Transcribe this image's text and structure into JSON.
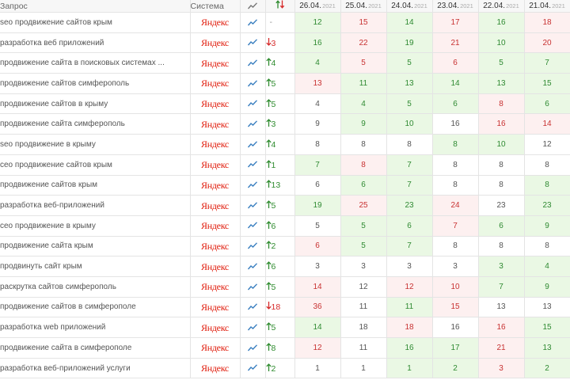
{
  "header": {
    "query_label": "Запрос",
    "system_label": "Система",
    "chart_icon": "line-chart-icon",
    "dynamics_icon": "up-down-arrows-icon",
    "dates": [
      {
        "day": "26.04.",
        "year": "2021"
      },
      {
        "day": "25.04.",
        "year": "2021"
      },
      {
        "day": "24.04.",
        "year": "2021"
      },
      {
        "day": "23.04.",
        "year": "2021"
      },
      {
        "day": "22.04.",
        "year": "2021"
      },
      {
        "day": "21.04.",
        "year": "2021"
      }
    ]
  },
  "colors": {
    "good_bg": "#eaf8e4",
    "bad_bg": "#fdf0f0",
    "up": "#2e8b2e",
    "down": "#d62a2a",
    "yandex": "#e01a0a"
  },
  "rows": [
    {
      "query": "seo продвижение сайтов крым",
      "system": "Яндекс",
      "dyn_dir": "none",
      "dyn": "-",
      "positions": [
        {
          "v": "12",
          "s": "good"
        },
        {
          "v": "15",
          "s": "bad"
        },
        {
          "v": "14",
          "s": "good"
        },
        {
          "v": "17",
          "s": "bad"
        },
        {
          "v": "16",
          "s": "good"
        },
        {
          "v": "18",
          "s": "bad"
        }
      ]
    },
    {
      "query": "разработка веб приложений",
      "system": "Яндекс",
      "dyn_dir": "down",
      "dyn": "3",
      "positions": [
        {
          "v": "16",
          "s": "good"
        },
        {
          "v": "22",
          "s": "bad"
        },
        {
          "v": "19",
          "s": "good"
        },
        {
          "v": "21",
          "s": "bad"
        },
        {
          "v": "10",
          "s": "good"
        },
        {
          "v": "20",
          "s": "bad"
        }
      ]
    },
    {
      "query": "продвижение сайта в поисковых системах ...",
      "system": "Яндекс",
      "dyn_dir": "up",
      "dyn": "4",
      "positions": [
        {
          "v": "4",
          "s": "good"
        },
        {
          "v": "5",
          "s": "bad"
        },
        {
          "v": "5",
          "s": "good"
        },
        {
          "v": "6",
          "s": "bad"
        },
        {
          "v": "5",
          "s": "good"
        },
        {
          "v": "7",
          "s": "good"
        }
      ]
    },
    {
      "query": "продвижение сайтов симферополь",
      "system": "Яндекс",
      "dyn_dir": "up",
      "dyn": "5",
      "positions": [
        {
          "v": "13",
          "s": "bad"
        },
        {
          "v": "11",
          "s": "good"
        },
        {
          "v": "13",
          "s": "good"
        },
        {
          "v": "14",
          "s": "good"
        },
        {
          "v": "13",
          "s": "good"
        },
        {
          "v": "15",
          "s": "good"
        }
      ]
    },
    {
      "query": "продвижение сайтов в крыму",
      "system": "Яндекс",
      "dyn_dir": "up",
      "dyn": "5",
      "positions": [
        {
          "v": "4",
          "s": "neutral"
        },
        {
          "v": "4",
          "s": "good"
        },
        {
          "v": "5",
          "s": "good"
        },
        {
          "v": "6",
          "s": "good"
        },
        {
          "v": "8",
          "s": "bad"
        },
        {
          "v": "6",
          "s": "good"
        }
      ]
    },
    {
      "query": "продвижение сайта симферополь",
      "system": "Яндекс",
      "dyn_dir": "up",
      "dyn": "3",
      "positions": [
        {
          "v": "9",
          "s": "neutral"
        },
        {
          "v": "9",
          "s": "good"
        },
        {
          "v": "10",
          "s": "good"
        },
        {
          "v": "16",
          "s": "neutral"
        },
        {
          "v": "16",
          "s": "bad"
        },
        {
          "v": "14",
          "s": "bad"
        }
      ]
    },
    {
      "query": "seo продвижение в крыму",
      "system": "Яндекс",
      "dyn_dir": "up",
      "dyn": "4",
      "positions": [
        {
          "v": "8",
          "s": "neutral"
        },
        {
          "v": "8",
          "s": "neutral"
        },
        {
          "v": "8",
          "s": "neutral"
        },
        {
          "v": "8",
          "s": "good"
        },
        {
          "v": "10",
          "s": "good"
        },
        {
          "v": "12",
          "s": "neutral"
        }
      ]
    },
    {
      "query": "сео продвижение сайтов крым",
      "system": "Яндекс",
      "dyn_dir": "up",
      "dyn": "1",
      "positions": [
        {
          "v": "7",
          "s": "good"
        },
        {
          "v": "8",
          "s": "bad"
        },
        {
          "v": "7",
          "s": "good"
        },
        {
          "v": "8",
          "s": "neutral"
        },
        {
          "v": "8",
          "s": "neutral"
        },
        {
          "v": "8",
          "s": "neutral"
        }
      ]
    },
    {
      "query": "продвижение сайтов крым",
      "system": "Яндекс",
      "dyn_dir": "up",
      "dyn": "13",
      "positions": [
        {
          "v": "6",
          "s": "neutral"
        },
        {
          "v": "6",
          "s": "good"
        },
        {
          "v": "7",
          "s": "good"
        },
        {
          "v": "8",
          "s": "neutral"
        },
        {
          "v": "8",
          "s": "neutral"
        },
        {
          "v": "8",
          "s": "good"
        }
      ]
    },
    {
      "query": "разработка веб-приложений",
      "system": "Яндекс",
      "dyn_dir": "up",
      "dyn": "5",
      "positions": [
        {
          "v": "19",
          "s": "good"
        },
        {
          "v": "25",
          "s": "bad"
        },
        {
          "v": "23",
          "s": "good"
        },
        {
          "v": "24",
          "s": "bad"
        },
        {
          "v": "23",
          "s": "neutral"
        },
        {
          "v": "23",
          "s": "good"
        }
      ]
    },
    {
      "query": "сео продвижение в крыму",
      "system": "Яндекс",
      "dyn_dir": "up",
      "dyn": "6",
      "positions": [
        {
          "v": "5",
          "s": "neutral"
        },
        {
          "v": "5",
          "s": "good"
        },
        {
          "v": "6",
          "s": "good"
        },
        {
          "v": "7",
          "s": "bad"
        },
        {
          "v": "6",
          "s": "good"
        },
        {
          "v": "9",
          "s": "good"
        }
      ]
    },
    {
      "query": "продвижение сайта крым",
      "system": "Яндекс",
      "dyn_dir": "up",
      "dyn": "2",
      "positions": [
        {
          "v": "6",
          "s": "bad"
        },
        {
          "v": "5",
          "s": "good"
        },
        {
          "v": "7",
          "s": "good"
        },
        {
          "v": "8",
          "s": "neutral"
        },
        {
          "v": "8",
          "s": "neutral"
        },
        {
          "v": "8",
          "s": "neutral"
        }
      ]
    },
    {
      "query": "продвинуть сайт крым",
      "system": "Яндекс",
      "dyn_dir": "up",
      "dyn": "6",
      "positions": [
        {
          "v": "3",
          "s": "neutral"
        },
        {
          "v": "3",
          "s": "neutral"
        },
        {
          "v": "3",
          "s": "neutral"
        },
        {
          "v": "3",
          "s": "neutral"
        },
        {
          "v": "3",
          "s": "good"
        },
        {
          "v": "4",
          "s": "good"
        }
      ]
    },
    {
      "query": "раскрутка сайтов симферополь",
      "system": "Яндекс",
      "dyn_dir": "up",
      "dyn": "5",
      "positions": [
        {
          "v": "14",
          "s": "bad"
        },
        {
          "v": "12",
          "s": "neutral"
        },
        {
          "v": "12",
          "s": "bad"
        },
        {
          "v": "10",
          "s": "bad"
        },
        {
          "v": "7",
          "s": "good"
        },
        {
          "v": "9",
          "s": "good"
        }
      ]
    },
    {
      "query": "продвижение сайтов в симферополе",
      "system": "Яндекс",
      "dyn_dir": "down",
      "dyn": "18",
      "positions": [
        {
          "v": "36",
          "s": "bad"
        },
        {
          "v": "11",
          "s": "neutral"
        },
        {
          "v": "11",
          "s": "good"
        },
        {
          "v": "15",
          "s": "bad"
        },
        {
          "v": "13",
          "s": "neutral"
        },
        {
          "v": "13",
          "s": "neutral"
        }
      ]
    },
    {
      "query": "разработка web приложений",
      "system": "Яндекс",
      "dyn_dir": "up",
      "dyn": "5",
      "positions": [
        {
          "v": "14",
          "s": "good"
        },
        {
          "v": "18",
          "s": "neutral"
        },
        {
          "v": "18",
          "s": "bad"
        },
        {
          "v": "16",
          "s": "neutral"
        },
        {
          "v": "16",
          "s": "bad"
        },
        {
          "v": "15",
          "s": "good"
        }
      ]
    },
    {
      "query": "продвижение сайта в симферополе",
      "system": "Яндекс",
      "dyn_dir": "up",
      "dyn": "8",
      "positions": [
        {
          "v": "12",
          "s": "bad"
        },
        {
          "v": "11",
          "s": "neutral"
        },
        {
          "v": "16",
          "s": "good"
        },
        {
          "v": "17",
          "s": "good"
        },
        {
          "v": "21",
          "s": "bad"
        },
        {
          "v": "13",
          "s": "good"
        }
      ]
    },
    {
      "query": "разработка веб-приложений услуги",
      "system": "Яндекс",
      "dyn_dir": "up",
      "dyn": "2",
      "positions": [
        {
          "v": "1",
          "s": "neutral"
        },
        {
          "v": "1",
          "s": "neutral"
        },
        {
          "v": "1",
          "s": "good"
        },
        {
          "v": "2",
          "s": "good"
        },
        {
          "v": "3",
          "s": "bad"
        },
        {
          "v": "2",
          "s": "good"
        }
      ]
    }
  ]
}
